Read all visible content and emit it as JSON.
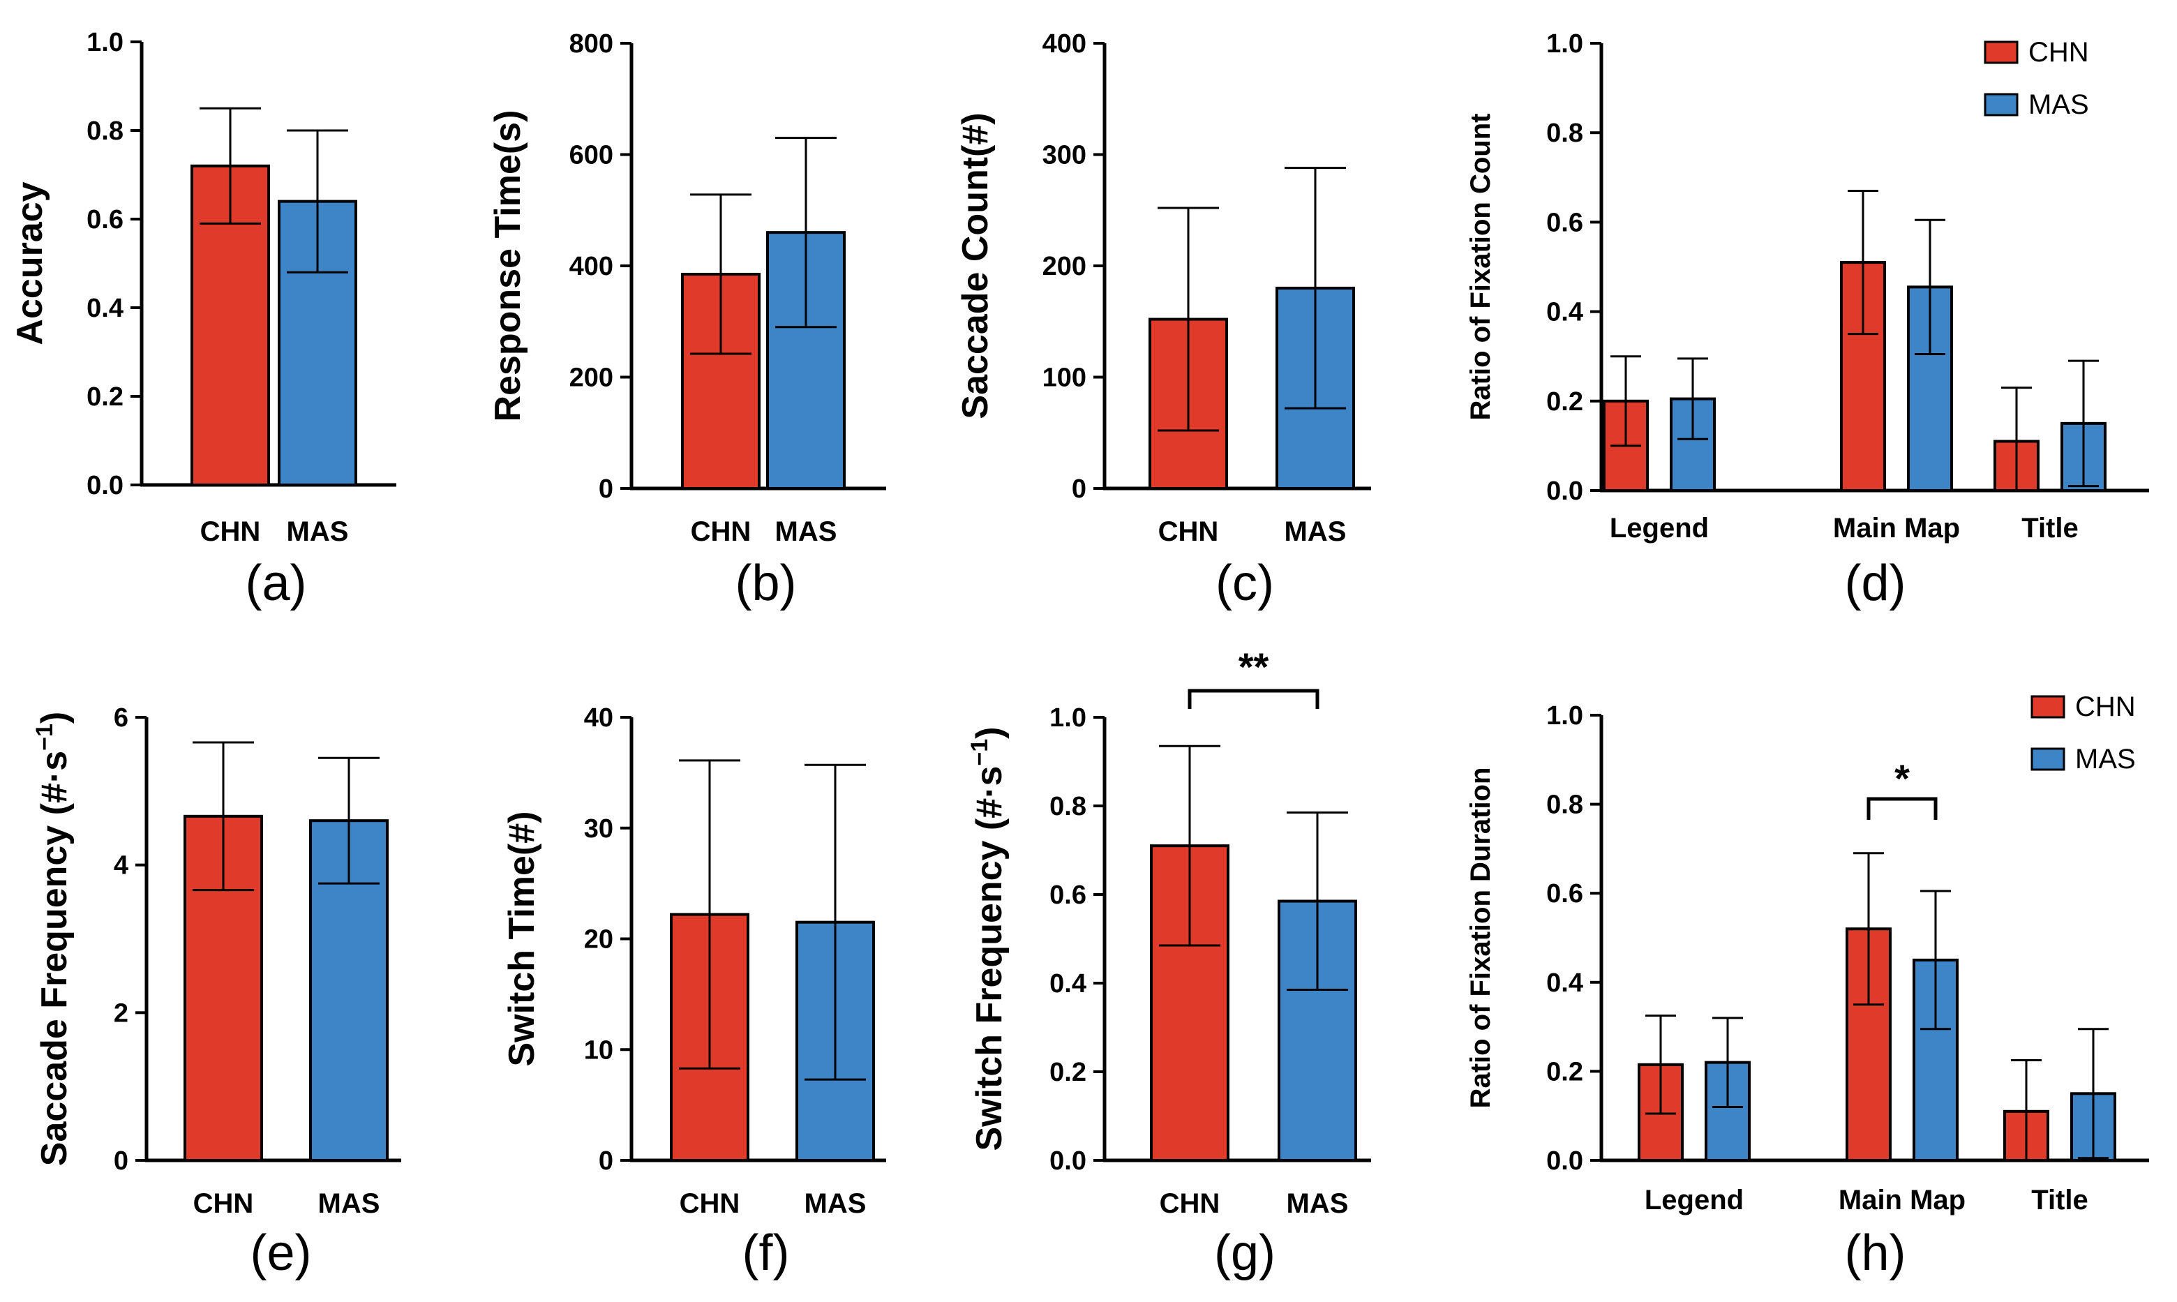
{
  "colors": {
    "CHN": "#e03a2b",
    "MAS": "#3d85c6",
    "axis": "#000000"
  },
  "chart_data": [
    {
      "id": "a",
      "type": "bar",
      "panel_label": "(a)",
      "ylabel": "Accuracy",
      "ylim": [
        0,
        1
      ],
      "yticks": [
        "0.0",
        "0.2",
        "0.4",
        "0.6",
        "0.8",
        "1.0"
      ],
      "ytick_values": [
        0,
        0.2,
        0.4,
        0.6,
        0.8,
        1.0
      ],
      "categories": [
        "CHN",
        "MAS"
      ],
      "values": [
        0.72,
        0.64
      ],
      "errors": [
        0.13,
        0.16
      ]
    },
    {
      "id": "b",
      "type": "bar",
      "panel_label": "(b)",
      "ylabel": "Response Time(s)",
      "ylim": [
        0,
        800
      ],
      "yticks": [
        "0",
        "200",
        "400",
        "600",
        "800"
      ],
      "ytick_values": [
        0,
        200,
        400,
        600,
        800
      ],
      "categories": [
        "CHN",
        "MAS"
      ],
      "values": [
        385,
        460
      ],
      "errors": [
        143,
        170
      ]
    },
    {
      "id": "c",
      "type": "bar",
      "panel_label": "(c)",
      "ylabel": "Saccade Count(#)",
      "ylim": [
        0,
        400
      ],
      "yticks": [
        "0",
        "100",
        "200",
        "300",
        "400"
      ],
      "ytick_values": [
        0,
        100,
        200,
        300,
        400
      ],
      "categories": [
        "CHN",
        "MAS"
      ],
      "values": [
        152,
        180
      ],
      "errors": [
        100,
        108
      ]
    },
    {
      "id": "d",
      "type": "bar",
      "panel_label": "(d)",
      "ylabel": "Ratio of Fixation Count",
      "ylim": [
        0,
        1
      ],
      "yticks": [
        "0.0",
        "0.2",
        "0.4",
        "0.6",
        "0.8",
        "1.0"
      ],
      "ytick_values": [
        0,
        0.2,
        0.4,
        0.6,
        0.8,
        1.0
      ],
      "categories": [
        "Legend",
        "Main Map",
        "Title"
      ],
      "series": [
        {
          "name": "CHN",
          "values": [
            0.2,
            0.51,
            0.11
          ],
          "errors": [
            0.1,
            0.16,
            0.12
          ]
        },
        {
          "name": "MAS",
          "values": [
            0.205,
            0.455,
            0.15
          ],
          "errors": [
            0.09,
            0.15,
            0.14
          ]
        }
      ],
      "legend": [
        "CHN",
        "MAS"
      ]
    },
    {
      "id": "e",
      "type": "bar",
      "panel_label": "(e)",
      "ylabel": "Saccade Frequency (#·s",
      "ylabel_sup": "−1",
      "ylabel_end": ")",
      "ylim": [
        0,
        6
      ],
      "yticks": [
        "0",
        "2",
        "4",
        "6"
      ],
      "ytick_values": [
        0,
        2,
        4,
        6
      ],
      "categories": [
        "CHN",
        "MAS"
      ],
      "values": [
        4.66,
        4.6
      ],
      "errors": [
        1.0,
        0.85
      ]
    },
    {
      "id": "f",
      "type": "bar",
      "panel_label": "(f)",
      "ylabel": "Switch Time(#)",
      "ylim": [
        0,
        40
      ],
      "yticks": [
        "0",
        "10",
        "20",
        "30",
        "40"
      ],
      "ytick_values": [
        0,
        10,
        20,
        30,
        40
      ],
      "categories": [
        "CHN",
        "MAS"
      ],
      "values": [
        22.2,
        21.5
      ],
      "errors": [
        13.9,
        14.2
      ]
    },
    {
      "id": "g",
      "type": "bar",
      "panel_label": "(g)",
      "ylabel": "Switch Frequency (#·s",
      "ylabel_sup": "−1",
      "ylabel_end": ")",
      "ylim": [
        0,
        1
      ],
      "yticks": [
        "0.0",
        "0.2",
        "0.4",
        "0.6",
        "0.8",
        "1.0"
      ],
      "ytick_values": [
        0,
        0.2,
        0.4,
        0.6,
        0.8,
        1.0
      ],
      "categories": [
        "CHN",
        "MAS"
      ],
      "values": [
        0.71,
        0.585
      ],
      "errors": [
        0.225,
        0.2
      ],
      "significance": "**"
    },
    {
      "id": "h",
      "type": "bar",
      "panel_label": "(h)",
      "ylabel": "Ratio of  Fixation Duration",
      "ylim": [
        0,
        1
      ],
      "yticks": [
        "0.0",
        "0.2",
        "0.4",
        "0.6",
        "0.8",
        "1.0"
      ],
      "ytick_values": [
        0,
        0.2,
        0.4,
        0.6,
        0.8,
        1.0
      ],
      "categories": [
        "Legend",
        "Main Map",
        "Title"
      ],
      "series": [
        {
          "name": "CHN",
          "values": [
            0.215,
            0.52,
            0.11
          ],
          "errors": [
            0.11,
            0.17,
            0.115
          ]
        },
        {
          "name": "MAS",
          "values": [
            0.22,
            0.45,
            0.15
          ],
          "errors": [
            0.1,
            0.155,
            0.145
          ]
        }
      ],
      "legend": [
        "CHN",
        "MAS"
      ],
      "significance": "*",
      "significance_category": "Main Map"
    }
  ]
}
